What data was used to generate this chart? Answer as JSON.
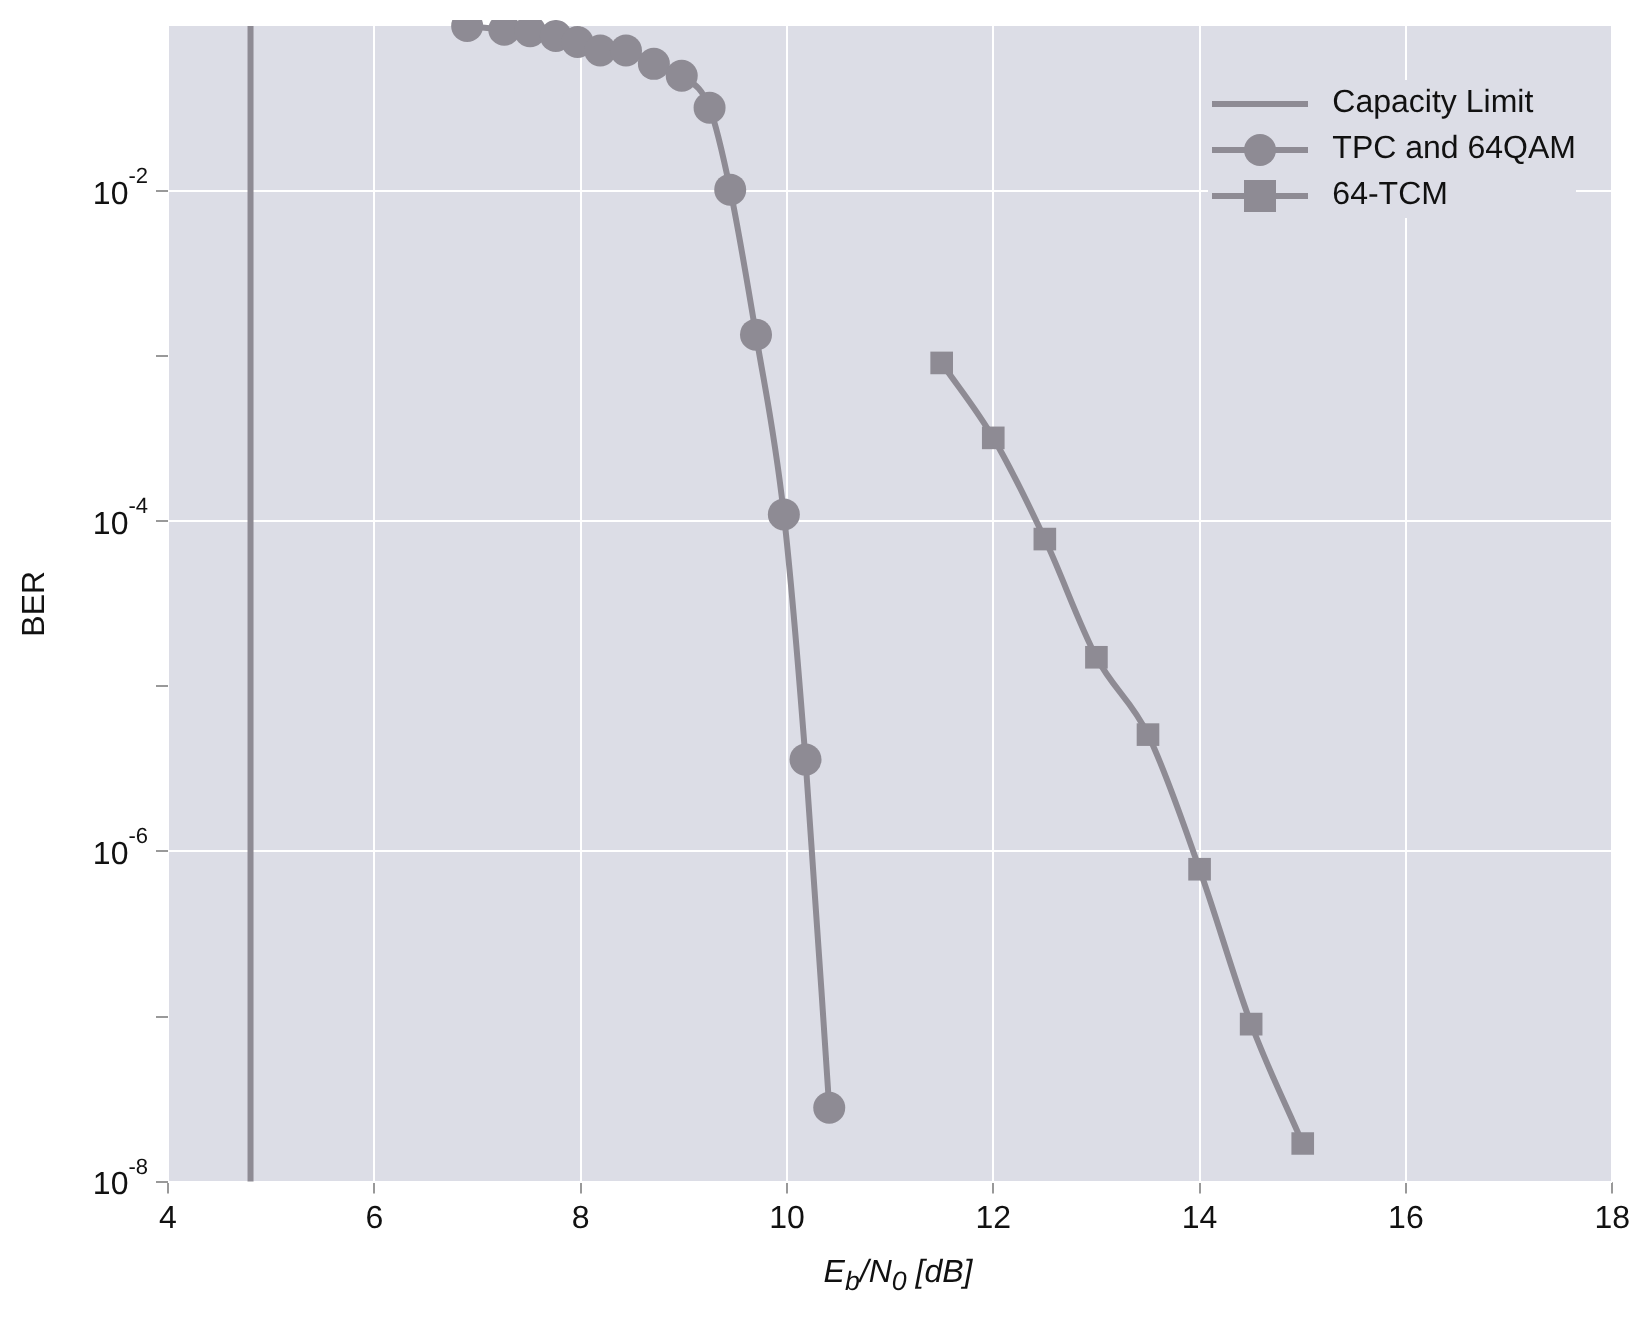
{
  "chart_data": {
    "type": "line",
    "xlabel": "E$_{b}$/N$_{0}$ [dB]",
    "ylabel": "BER",
    "log": "y",
    "grid": true,
    "legend": "top right",
    "line_style": "solid",
    "xlim": [
      4,
      18
    ],
    "xticks": [
      4,
      6,
      8,
      10,
      12,
      14,
      16,
      18
    ],
    "ylim": [
      1e-08,
      0.1
    ],
    "yticks": [
      {
        "value": 1e-08,
        "label": "10$^{-8}$"
      },
      {
        "value": 1e-07,
        "label": null
      },
      {
        "value": 1e-06,
        "label": "10$^{-6}$"
      },
      {
        "value": 1e-05,
        "label": null
      },
      {
        "value": 0.0001,
        "label": "10$^{-4}$"
      },
      {
        "value": 0.001,
        "label": null
      },
      {
        "value": 0.01,
        "label": "10$^{-2}$"
      }
    ],
    "series": [
      {
        "name": "Capacity Limit",
        "color": "#8e8b94",
        "marker": "none",
        "x": [
          4.8,
          4.8
        ],
        "values": [
          1e-08,
          0.1
        ]
      },
      {
        "name": "TPC and 64QAM",
        "color": "#8e8b94",
        "marker": "circle",
        "x": [
          6.9,
          7.26,
          7.51,
          7.76,
          7.97,
          8.19,
          8.44,
          8.71,
          8.98,
          9.25,
          9.45,
          9.7,
          9.97,
          10.18,
          10.41
        ],
        "values": [
          0.1,
          0.095,
          0.093,
          0.087,
          0.08,
          0.071,
          0.071,
          0.059,
          0.05,
          0.032,
          0.0102,
          0.00135,
          0.00011,
          3.6e-06,
          2.8e-08
        ]
      },
      {
        "name": "64-TCM",
        "color": "#8e8b94",
        "marker": "square",
        "x": [
          11.5,
          12,
          12.5,
          13,
          13.5,
          14,
          14.5,
          15
        ],
        "values": [
          0.00091,
          0.00032,
          7.8e-05,
          1.5e-05,
          5.1e-06,
          7.8e-07,
          9e-08,
          1.7e-08
        ]
      }
    ]
  }
}
